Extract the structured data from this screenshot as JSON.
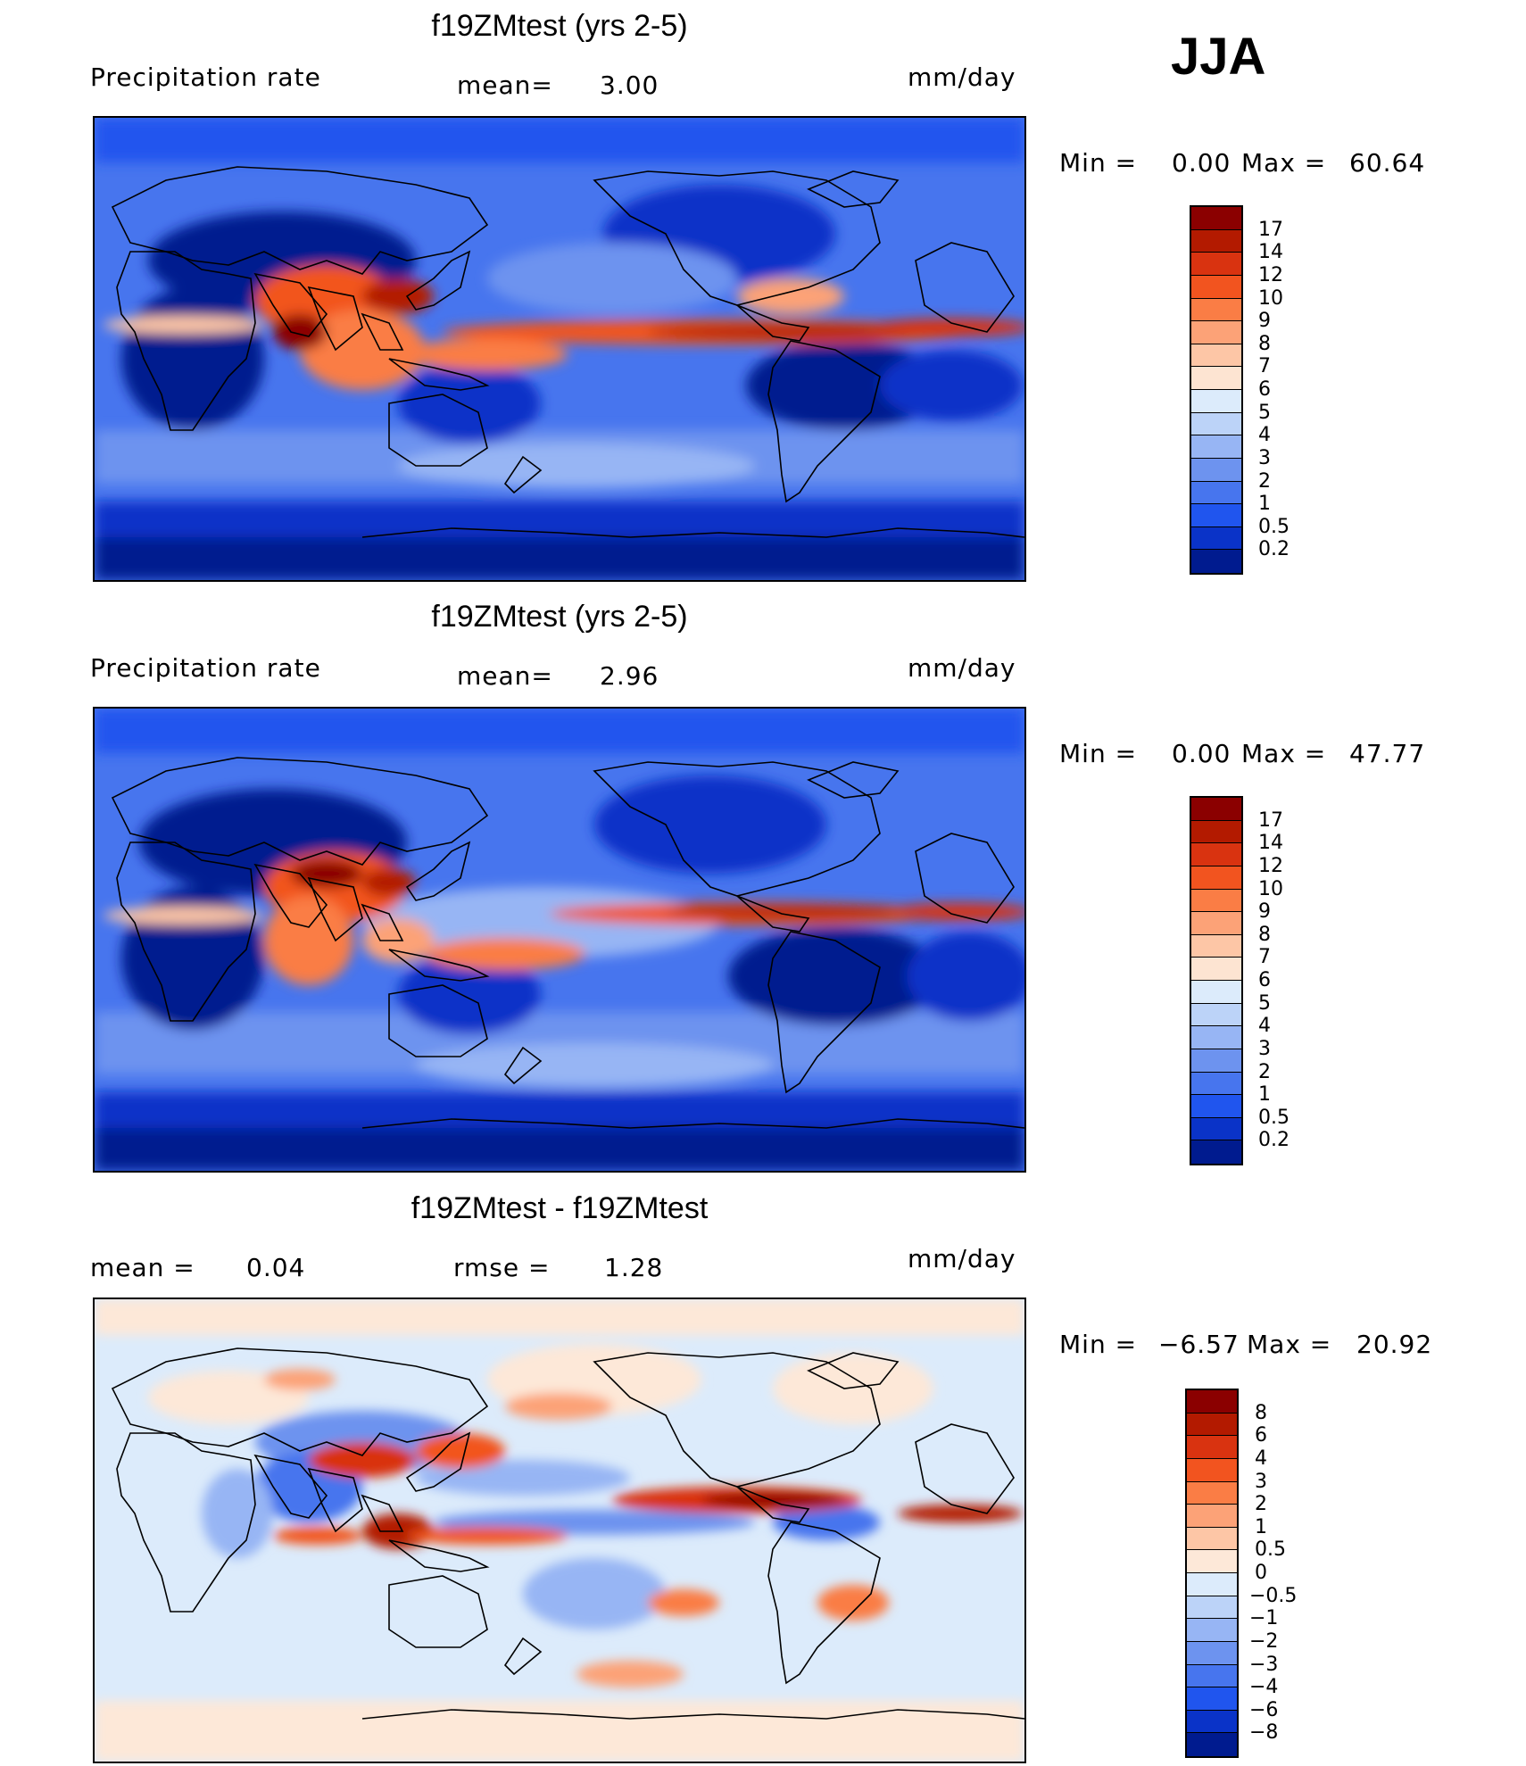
{
  "season": "JJA",
  "units": "mm/day",
  "panels": [
    {
      "title": "f19ZMtest (yrs 2-5)",
      "variable": "Precipitation rate",
      "stat1_label": "mean=",
      "stat1_value": "3.00",
      "units": "mm/day",
      "min_label": "Min =",
      "min_value": "0.00",
      "max_label": "Max =",
      "max_value": "60.64"
    },
    {
      "title": "f19ZMtest (yrs 2-5)",
      "variable": "Precipitation rate",
      "stat1_label": "mean=",
      "stat1_value": "2.96",
      "units": "mm/day",
      "min_label": "Min =",
      "min_value": "0.00",
      "max_label": "Max =",
      "max_value": "47.77"
    },
    {
      "title": "f19ZMtest - f19ZMtest",
      "stat1_label": "mean =",
      "stat1_value": "0.04",
      "stat2_label": "rmse =",
      "stat2_value": "1.28",
      "units": "mm/day",
      "min_label": "Min =",
      "min_value": "−6.57",
      "max_label": "Max =",
      "max_value": "20.92"
    }
  ],
  "precip_colorbar": {
    "levels": [
      "17",
      "14",
      "12",
      "10",
      "9",
      "8",
      "7",
      "6",
      "5",
      "4",
      "3",
      "2",
      "1",
      "0.5",
      "0.2"
    ],
    "colors": [
      "#8b0000",
      "#b31a00",
      "#d93310",
      "#f2541f",
      "#fa7d45",
      "#fca277",
      "#fdc6a6",
      "#fde4d2",
      "#dcebfb",
      "#bcd3f8",
      "#97b5f4",
      "#6d93ef",
      "#4775ee",
      "#2055ee",
      "#0a33c8",
      "#001b8f"
    ]
  },
  "diff_colorbar": {
    "levels": [
      "8",
      "6",
      "4",
      "3",
      "2",
      "1",
      "0.5",
      "0",
      "−0.5",
      "−1",
      "−2",
      "−3",
      "−4",
      "−6",
      "−8"
    ],
    "colors": [
      "#8b0000",
      "#b31a00",
      "#d93310",
      "#f2541f",
      "#fa7d45",
      "#fca277",
      "#fdc6a6",
      "#fde8d8",
      "#dcebfb",
      "#bcd3f8",
      "#97b5f4",
      "#6d93ef",
      "#4775ee",
      "#2055ee",
      "#0a33c8",
      "#001b8f"
    ]
  }
}
